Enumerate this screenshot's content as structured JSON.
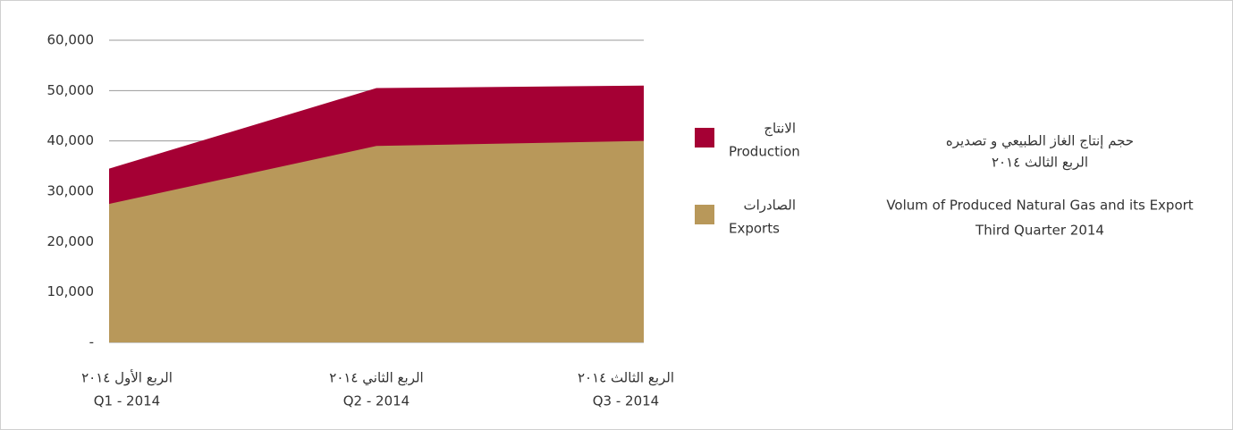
{
  "chart_data": {
    "type": "area",
    "title": [
      "حجم إنتاج الغاز الطبيعي و تصديره",
      "الربع الثالث ٢٠١٤",
      "Volum of Produced Natural Gas and its Export",
      "Third Quarter 2014"
    ],
    "categories": [
      [
        "الربع الأول ٢٠١٤",
        "Q1 - 2014"
      ],
      [
        "الربع الثاني ٢٠١٤",
        "Q2 - 2014"
      ],
      [
        "الربع الثالث ٢٠١٤",
        "Q3 - 2014"
      ]
    ],
    "series": [
      {
        "name": [
          "الانتاج",
          "Production"
        ],
        "color": "#a50034",
        "values": [
          34500,
          50500,
          51000
        ]
      },
      {
        "name": [
          "الصادرات",
          "Exports"
        ],
        "color": "#b8985a",
        "values": [
          27500,
          39000,
          40000
        ]
      }
    ],
    "ylim": [
      0,
      60000
    ],
    "yticks": [
      {
        "value": 0,
        "label": "-"
      },
      {
        "value": 10000,
        "label": "10,000"
      },
      {
        "value": 20000,
        "label": "20,000"
      },
      {
        "value": 30000,
        "label": "30,000"
      },
      {
        "value": 40000,
        "label": "40,000"
      },
      {
        "value": 50000,
        "label": "50,000"
      },
      {
        "value": 60000,
        "label": "60,000"
      }
    ],
    "grid": true
  }
}
